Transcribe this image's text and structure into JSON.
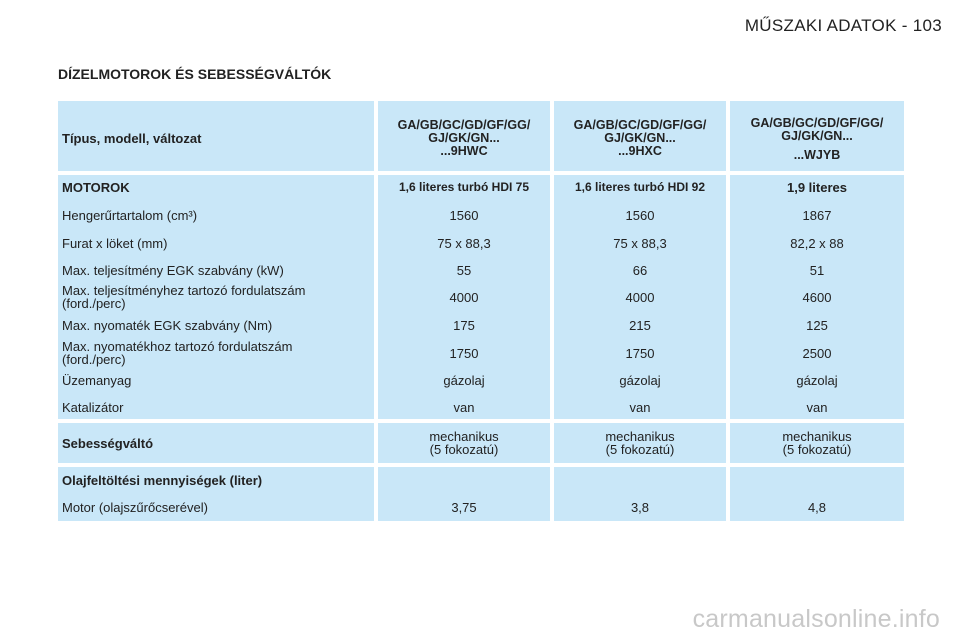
{
  "page": {
    "header": "MŰSZAKI ADATOK - 103",
    "section_title": "DÍZELMOTOROK ÉS SEBESSÉGVÁLTÓK"
  },
  "table": {
    "header": {
      "label": "Típus, modell, változat",
      "cols": [
        {
          "line1": "GA/GB/GC/GD/GF/GG/",
          "line2": "GJ/GK/GN...",
          "line3": "...9HWC"
        },
        {
          "line1": "GA/GB/GC/GD/GF/GG/",
          "line2": "GJ/GK/GN...",
          "line3": "...9HXC"
        },
        {
          "line1": "GA/GB/GC/GD/GF/GG/",
          "line2": "GJ/GK/GN...",
          "line3": "...WJYB"
        }
      ]
    },
    "engine_rows": [
      {
        "label": "MOTOROK",
        "values": [
          "1,6 literes turbó HDI 75",
          "1,6 literes turbó HDI 92",
          "1,9 literes"
        ]
      },
      {
        "label": "Hengerűrtartalom (cm³)",
        "values": [
          "1560",
          "1560",
          "1867"
        ]
      },
      {
        "label": "Furat x löket (mm)",
        "values": [
          "75 x 88,3",
          "75 x 88,3",
          "82,2 x 88"
        ]
      },
      {
        "label": "Max. teljesítmény EGK szabvány (kW)",
        "values": [
          "55",
          "66",
          "51"
        ]
      },
      {
        "label_line1": "Max. teljesítményhez tartozó fordulatszám",
        "label_line2": "(ford./perc)",
        "values": [
          "4000",
          "4000",
          "4600"
        ]
      },
      {
        "label": "Max. nyomaték EGK szabvány (Nm)",
        "values": [
          "175",
          "215",
          "125"
        ]
      },
      {
        "label_line1": "Max. nyomatékhoz tartozó fordulatszám",
        "label_line2": "(ford./perc)",
        "values": [
          "1750",
          "1750",
          "2500"
        ]
      },
      {
        "label": "Üzemanyag",
        "values": [
          "gázolaj",
          "gázolaj",
          "gázolaj"
        ]
      },
      {
        "label": "Katalizátor",
        "values": [
          "van",
          "van",
          "van"
        ]
      }
    ],
    "gearbox": {
      "label": "Sebességváltó",
      "values": [
        {
          "line1": "mechanikus",
          "line2": "(5 fokozatú)"
        },
        {
          "line1": "mechanikus",
          "line2": "(5 fokozatú)"
        },
        {
          "line1": "mechanikus",
          "line2": "(5 fokozatú)"
        }
      ]
    },
    "oil": {
      "title": "Olajfeltöltési mennyiségek (liter)",
      "row_label": "Motor (olajszűrőcserével)",
      "values": [
        "3,75",
        "3,8",
        "4,8"
      ]
    }
  },
  "watermark": "carmanualsonline.info",
  "colors": {
    "cell_bg": "#c9e7f8",
    "text": "#222222",
    "watermark": "#c8c8c8"
  }
}
